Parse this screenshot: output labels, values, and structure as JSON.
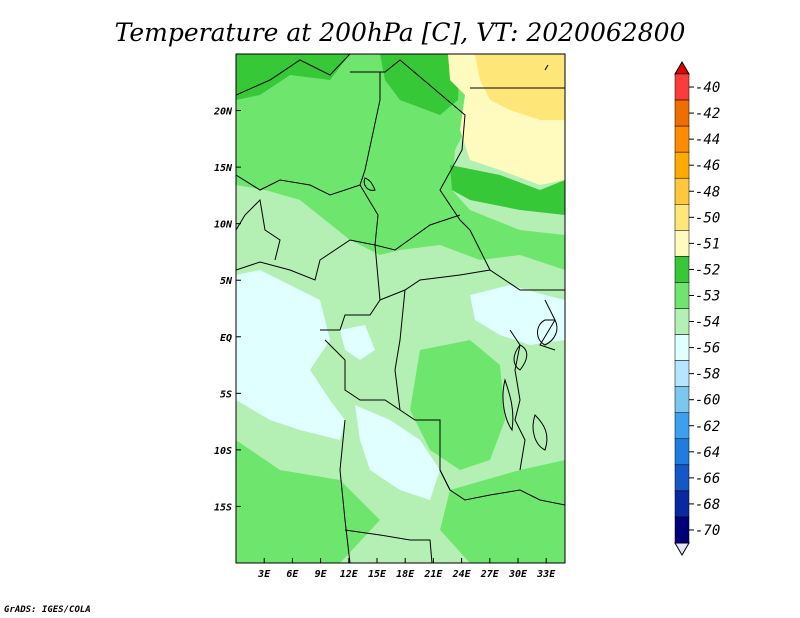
{
  "title": "Temperature at 200hPa [C], VT: 2020062800",
  "credit": "GrADS: IGES/COLA",
  "map": {
    "lon_range": [
      0,
      35
    ],
    "lat_range": [
      -20,
      25
    ],
    "lat_ticks": [
      {
        "value": 20,
        "label": "20N"
      },
      {
        "value": 15,
        "label": "15N"
      },
      {
        "value": 10,
        "label": "10N"
      },
      {
        "value": 5,
        "label": "5N"
      },
      {
        "value": 0,
        "label": "EQ"
      },
      {
        "value": -5,
        "label": "5S"
      },
      {
        "value": -10,
        "label": "10S"
      },
      {
        "value": -15,
        "label": "15S"
      }
    ],
    "lon_ticks": [
      {
        "value": 3,
        "label": "3E"
      },
      {
        "value": 6,
        "label": "6E"
      },
      {
        "value": 9,
        "label": "9E"
      },
      {
        "value": 12,
        "label": "12E"
      },
      {
        "value": 15,
        "label": "15E"
      },
      {
        "value": 18,
        "label": "18E"
      },
      {
        "value": 21,
        "label": "21E"
      },
      {
        "value": 24,
        "label": "24E"
      },
      {
        "value": 27,
        "label": "27E"
      },
      {
        "value": 30,
        "label": "30E"
      },
      {
        "value": 33,
        "label": "33E"
      }
    ]
  },
  "legend": {
    "levels": [
      "-40",
      "-42",
      "-44",
      "-46",
      "-48",
      "-50",
      "-51",
      "-52",
      "-53",
      "-54",
      "-56",
      "-58",
      "-60",
      "-62",
      "-64",
      "-66",
      "-68",
      "-70"
    ],
    "colors": [
      "#fa3c3c",
      "#f06e00",
      "#ff8c00",
      "#ffaa00",
      "#ffc83c",
      "#ffe678",
      "#fffabe",
      "#36c836",
      "#6ee66e",
      "#b4f0b4",
      "#e0ffff",
      "#b4e6ff",
      "#7ac8f0",
      "#3ca0f0",
      "#1e7dde",
      "#1458c8",
      "#0a28a0",
      "#000078"
    ],
    "top_color": "#e60000",
    "bottom_color": "#e6e6fa"
  }
}
